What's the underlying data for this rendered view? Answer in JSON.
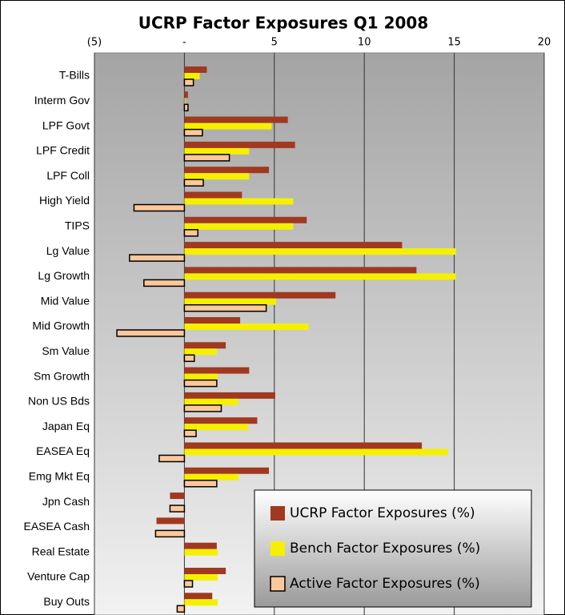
{
  "chart_data": {
    "type": "bar",
    "orientation": "horizontal",
    "title": "UCRP Factor Exposures Q1 2008",
    "categories": [
      "T-Bills",
      "Interm Gov",
      "LPF Govt",
      "LPF Credit",
      "LPF Coll",
      "High Yield",
      "TIPS",
      "Lg Value",
      "Lg Growth",
      "Mid Value",
      "Mid Growth",
      "Sm Value",
      "Sm Growth",
      "Non US Bds",
      "Japan Eq",
      "EASEA Eq",
      "Emg Mkt Eq",
      "Jpn Cash",
      "EASEA Cash",
      "Real Estate",
      "Venture Cap",
      "Buy Outs"
    ],
    "series": [
      {
        "name": "UCRP Factor Exposures (%)",
        "color": "#a0391f",
        "values": [
          1.25,
          0.2,
          5.75,
          6.15,
          4.7,
          3.2,
          6.8,
          12.1,
          12.9,
          8.4,
          3.1,
          2.3,
          3.6,
          5.05,
          4.05,
          13.2,
          4.7,
          -0.8,
          -1.55,
          1.8,
          2.3,
          1.55
        ]
      },
      {
        "name": "Bench Factor Exposures (%)",
        "color": "#f5f000",
        "values": [
          0.85,
          0.05,
          4.85,
          3.6,
          3.6,
          6.05,
          6.05,
          15.1,
          15.1,
          5.1,
          6.9,
          1.8,
          1.85,
          3.0,
          3.55,
          14.65,
          3.0,
          0,
          0,
          1.85,
          1.85,
          1.85
        ]
      },
      {
        "name": "Active Factor Exposures (%)",
        "color": "#fcc89b",
        "values": [
          0.5,
          0.2,
          1.0,
          2.5,
          1.05,
          -2.8,
          0.75,
          -3.05,
          -2.25,
          4.55,
          -3.75,
          0.55,
          1.8,
          2.05,
          0.65,
          -1.4,
          1.8,
          -0.8,
          -1.6,
          0,
          0.45,
          -0.4
        ]
      }
    ],
    "xlim": [
      -5,
      20
    ],
    "xticks": [
      {
        "value": -5,
        "label": "(5)"
      },
      {
        "value": 0,
        "label": "-"
      },
      5,
      10,
      15,
      20
    ],
    "grid": true,
    "legend": "lower right"
  }
}
